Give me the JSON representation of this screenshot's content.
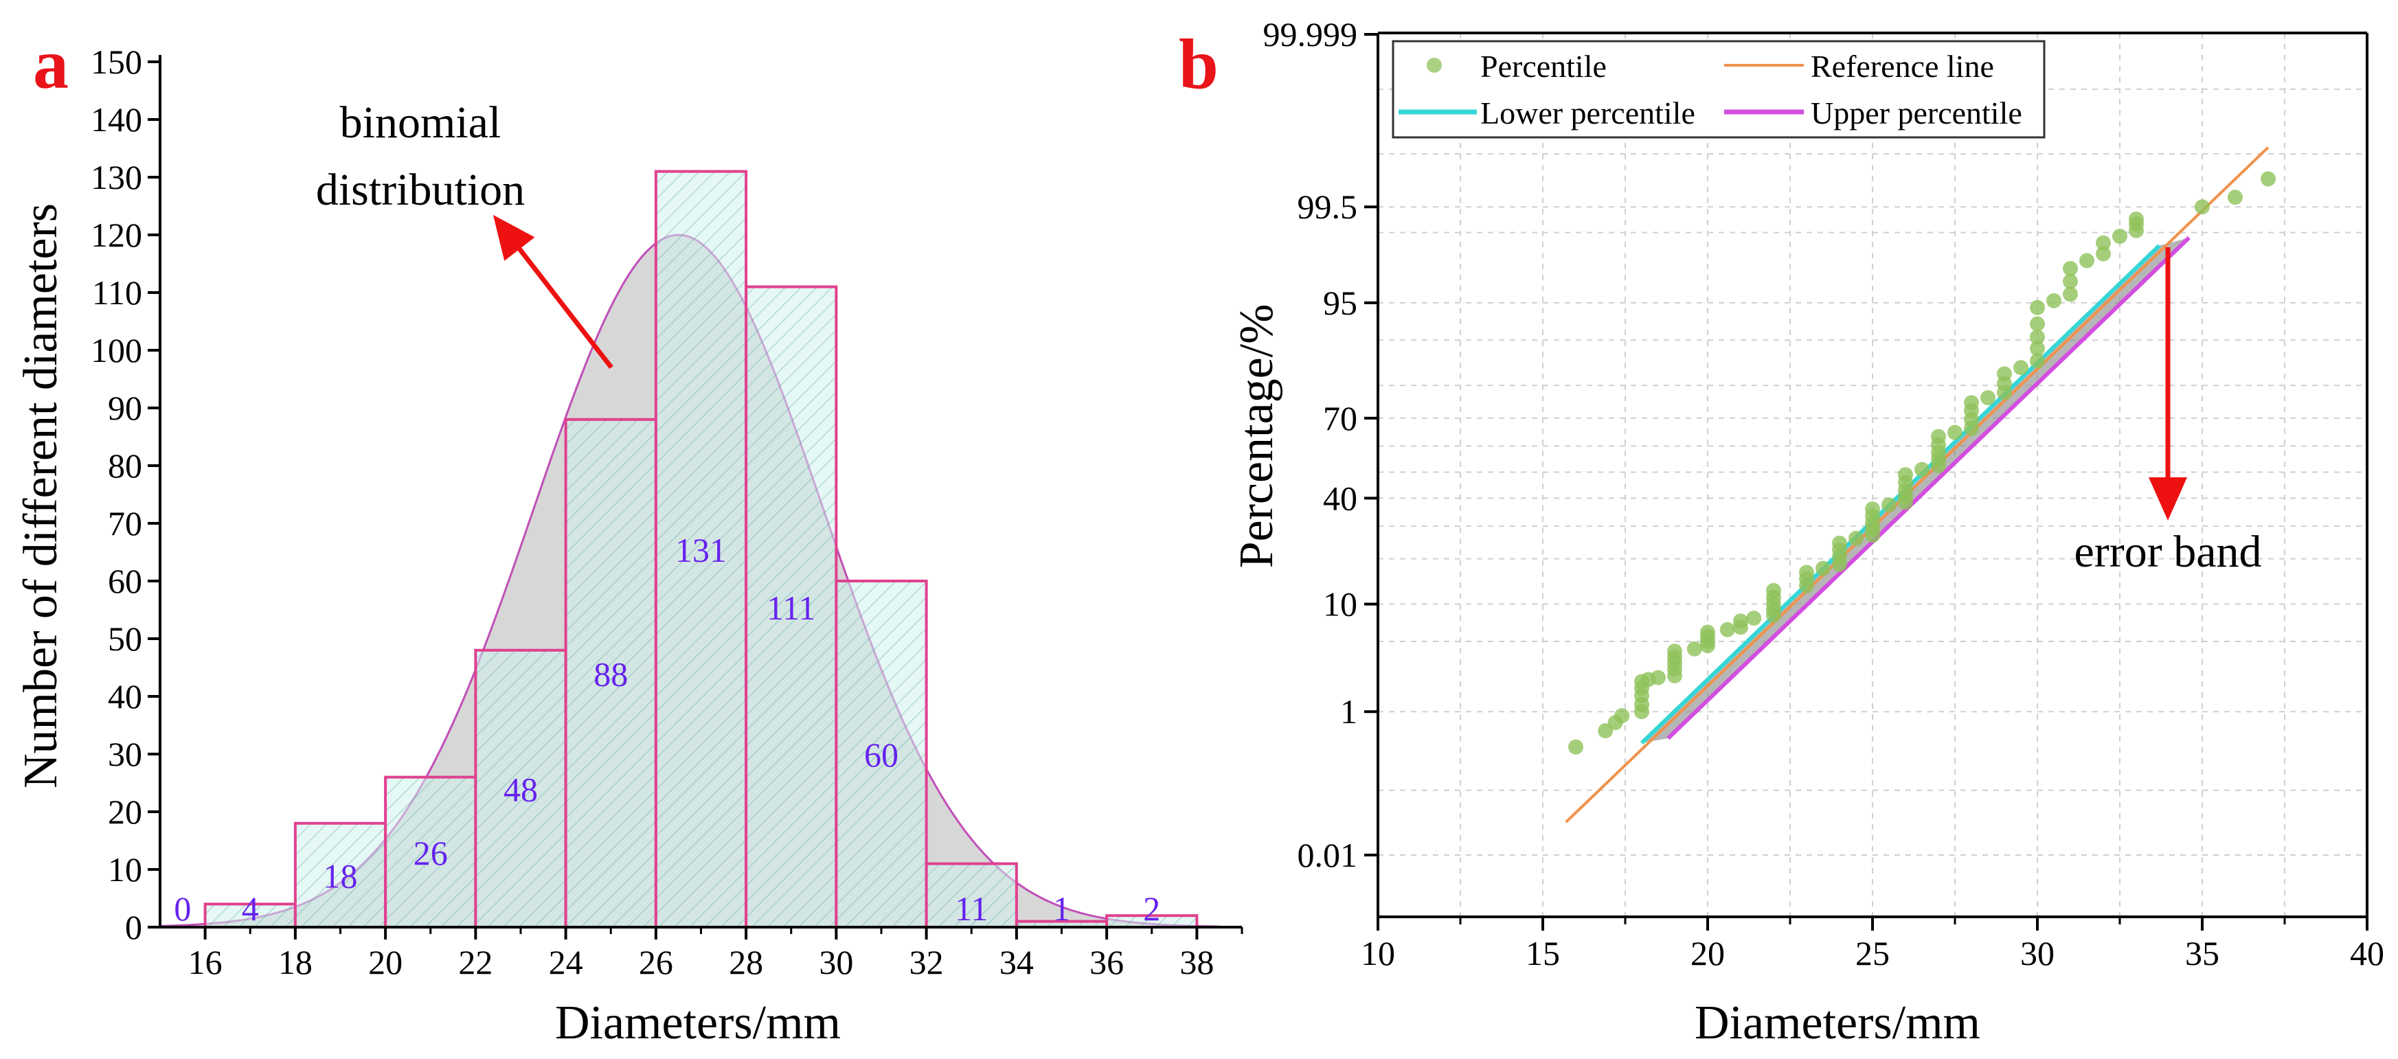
{
  "panels": {
    "a_label": "a",
    "b_label": "b"
  },
  "colors": {
    "panel_label": "#e8141a",
    "bar_edge": "#e0418f",
    "bar_fill": "#cff3ec",
    "curve_edge": "#c04fb8",
    "curve_fill": "#a7a7a7",
    "value_label": "#6622ee",
    "arrow": "#ee1111",
    "percentile_point": "#8fc25a",
    "reference_line": "#f0924a",
    "lower_percentile": "#35d6d6",
    "upper_percentile": "#d34de0",
    "error_band": "#8f8f8f",
    "grid": "#cfcfcf"
  },
  "chart_data": [
    {
      "panel": "a",
      "type": "bar",
      "title": "",
      "xlabel": "Diameters/mm",
      "ylabel": "Number of different diameters",
      "xlim": [
        15,
        39
      ],
      "ylim": [
        0,
        150
      ],
      "x_ticks": [
        16,
        18,
        20,
        22,
        24,
        26,
        28,
        30,
        32,
        34,
        36,
        38
      ],
      "y_ticks": [
        0,
        10,
        20,
        30,
        40,
        50,
        60,
        70,
        80,
        90,
        100,
        110,
        120,
        130,
        140,
        150
      ],
      "bins": [
        {
          "start": 14,
          "end": 16,
          "value": 0,
          "label": "0"
        },
        {
          "start": 16,
          "end": 18,
          "value": 4,
          "label": "4"
        },
        {
          "start": 18,
          "end": 20,
          "value": 18,
          "label": "18"
        },
        {
          "start": 20,
          "end": 22,
          "value": 26,
          "label": "26"
        },
        {
          "start": 22,
          "end": 24,
          "value": 48,
          "label": "48"
        },
        {
          "start": 24,
          "end": 26,
          "value": 88,
          "label": "88"
        },
        {
          "start": 26,
          "end": 28,
          "value": 131,
          "label": "131"
        },
        {
          "start": 28,
          "end": 30,
          "value": 111,
          "label": "111"
        },
        {
          "start": 30,
          "end": 32,
          "value": 60,
          "label": "60"
        },
        {
          "start": 32,
          "end": 34,
          "value": 11,
          "label": "11"
        },
        {
          "start": 34,
          "end": 36,
          "value": 1,
          "label": "1"
        },
        {
          "start": 36,
          "end": 38,
          "value": 2,
          "label": "2"
        }
      ],
      "fit_curve": {
        "name": "binomial distribution",
        "peak_x": 26.5,
        "peak_y": 120,
        "sigma": 3.2
      },
      "annotation": {
        "line1": "binomial",
        "line2": "distribution"
      }
    },
    {
      "panel": "b",
      "type": "scatter",
      "title": "",
      "xlabel": "Diameters/mm",
      "ylabel": "Percentage/%",
      "xlim": [
        10,
        40
      ],
      "x_ticks": [
        10,
        15,
        20,
        25,
        30,
        35,
        40
      ],
      "y_ticks": [
        {
          "label": "0.01",
          "p": 0.0001
        },
        {
          "label": "1",
          "p": 0.01
        },
        {
          "label": "10",
          "p": 0.1
        },
        {
          "label": "40",
          "p": 0.4
        },
        {
          "label": "70",
          "p": 0.7
        },
        {
          "label": "95",
          "p": 0.95
        },
        {
          "label": "99.5",
          "p": 0.995
        },
        {
          "label": "99.999",
          "p": 0.99999
        }
      ],
      "legend": {
        "position": "top-left",
        "entries": [
          "Percentile",
          "Reference line",
          "Lower percentile",
          "Upper percentile"
        ]
      },
      "reference_line": {
        "mean": 26.75,
        "sd": 3.25,
        "x_range": [
          15.7,
          37
        ]
      },
      "lower_percentile": {
        "mean": 26.55,
        "sd": 3.25,
        "x_range": [
          18.0,
          33.7
        ]
      },
      "upper_percentile": {
        "mean": 27.2,
        "sd": 3.25,
        "x_range": [
          18.8,
          34.6
        ]
      },
      "points": [
        [
          16.0,
          0.38
        ],
        [
          16.9,
          0.6
        ],
        [
          17.2,
          0.75
        ],
        [
          17.4,
          0.9
        ],
        [
          18.0,
          1.0
        ],
        [
          18.0,
          1.2
        ],
        [
          18.0,
          1.5
        ],
        [
          18.0,
          1.8
        ],
        [
          18.0,
          2.1
        ],
        [
          18.2,
          2.2
        ],
        [
          18.5,
          2.3
        ],
        [
          19.0,
          2.4
        ],
        [
          19.0,
          2.8
        ],
        [
          19.0,
          3.2
        ],
        [
          19.0,
          3.6
        ],
        [
          19.0,
          4.1
        ],
        [
          19.6,
          4.3
        ],
        [
          20.0,
          4.6
        ],
        [
          20.0,
          5.0
        ],
        [
          20.0,
          5.5
        ],
        [
          20.0,
          6.0
        ],
        [
          20.6,
          6.3
        ],
        [
          21.0,
          6.6
        ],
        [
          21.0,
          7.4
        ],
        [
          21.4,
          7.8
        ],
        [
          22.0,
          8.2
        ],
        [
          22.0,
          9.0
        ],
        [
          22.0,
          10.0
        ],
        [
          22.0,
          11.2
        ],
        [
          22.0,
          12.5
        ],
        [
          23.0,
          13.5
        ],
        [
          23.0,
          15.0
        ],
        [
          23.0,
          16.5
        ],
        [
          23.5,
          17.5
        ],
        [
          24.0,
          18.5
        ],
        [
          24.0,
          20.5
        ],
        [
          24.0,
          22.5
        ],
        [
          24.0,
          24.5
        ],
        [
          24.5,
          26.0
        ],
        [
          25.0,
          27.0
        ],
        [
          25.0,
          29.0
        ],
        [
          25.0,
          31.0
        ],
        [
          25.0,
          33.5
        ],
        [
          25.0,
          36.0
        ],
        [
          25.5,
          37.5
        ],
        [
          26.0,
          38.5
        ],
        [
          26.0,
          40.5
        ],
        [
          26.0,
          43.0
        ],
        [
          26.0,
          46.0
        ],
        [
          26.0,
          49.0
        ],
        [
          26.5,
          51.0
        ],
        [
          27.0,
          52.5
        ],
        [
          27.0,
          55.0
        ],
        [
          27.0,
          57.5
        ],
        [
          27.0,
          60.5
        ],
        [
          27.0,
          63.5
        ],
        [
          27.5,
          65.0
        ],
        [
          28.0,
          66.5
        ],
        [
          28.0,
          69.5
        ],
        [
          28.0,
          72.5
        ],
        [
          28.0,
          75.0
        ],
        [
          28.5,
          76.5
        ],
        [
          29.0,
          78.0
        ],
        [
          29.0,
          80.5
        ],
        [
          29.0,
          83.0
        ],
        [
          29.5,
          84.5
        ],
        [
          30.0,
          86.0
        ],
        [
          30.0,
          88.5
        ],
        [
          30.0,
          90.5
        ],
        [
          30.0,
          92.5
        ],
        [
          30.0,
          94.5
        ],
        [
          30.5,
          95.2
        ],
        [
          31.0,
          95.8
        ],
        [
          31.0,
          96.8
        ],
        [
          31.0,
          97.6
        ],
        [
          31.5,
          98.0
        ],
        [
          32.0,
          98.3
        ],
        [
          32.0,
          98.7
        ],
        [
          32.5,
          98.9
        ],
        [
          33.0,
          99.05
        ],
        [
          33.0,
          99.2
        ],
        [
          33.0,
          99.3
        ],
        [
          35.0,
          99.5
        ],
        [
          36.0,
          99.62
        ],
        [
          37.0,
          99.78
        ]
      ],
      "annotation": "error band"
    }
  ]
}
